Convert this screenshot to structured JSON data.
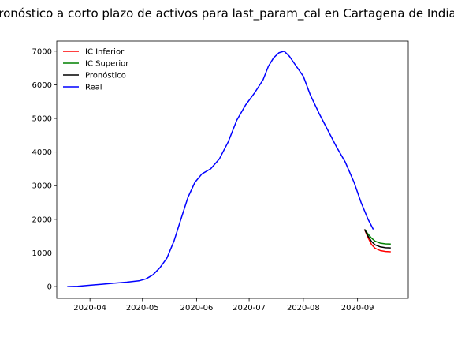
{
  "chart_data": {
    "type": "line",
    "title": "Pronóstico a corto plazo de activos para last_param_cal en Cartagena de Indias",
    "xlabel": "",
    "ylabel": "",
    "x_range": [
      "2020-03-13",
      "2020-09-30"
    ],
    "ylim": [
      -350,
      7300
    ],
    "x_ticks": [
      "2020-04-01",
      "2020-05-01",
      "2020-06-01",
      "2020-07-01",
      "2020-08-01",
      "2020-09-01"
    ],
    "x_tick_labels": [
      "2020-04",
      "2020-05",
      "2020-06",
      "2020-07",
      "2020-08",
      "2020-09"
    ],
    "y_ticks": [
      0,
      1000,
      2000,
      3000,
      4000,
      5000,
      6000,
      7000
    ],
    "y_tick_labels": [
      "0",
      "1000",
      "2000",
      "3000",
      "4000",
      "5000",
      "6000",
      "7000"
    ],
    "grid": false,
    "legend_position": "top-left",
    "series": [
      {
        "name": "IC Inferior",
        "color": "#ff0000",
        "points": [
          [
            "2020-09-05",
            1700
          ],
          [
            "2020-09-07",
            1450
          ],
          [
            "2020-09-09",
            1250
          ],
          [
            "2020-09-11",
            1140
          ],
          [
            "2020-09-14",
            1070
          ],
          [
            "2020-09-17",
            1045
          ],
          [
            "2020-09-20",
            1035
          ]
        ]
      },
      {
        "name": "IC Superior",
        "color": "#008000",
        "points": [
          [
            "2020-09-05",
            1700
          ],
          [
            "2020-09-07",
            1560
          ],
          [
            "2020-09-09",
            1440
          ],
          [
            "2020-09-11",
            1350
          ],
          [
            "2020-09-14",
            1290
          ],
          [
            "2020-09-17",
            1270
          ],
          [
            "2020-09-20",
            1265
          ]
        ]
      },
      {
        "name": "Pronóstico",
        "color": "#000000",
        "points": [
          [
            "2020-09-05",
            1700
          ],
          [
            "2020-09-07",
            1500
          ],
          [
            "2020-09-09",
            1340
          ],
          [
            "2020-09-11",
            1240
          ],
          [
            "2020-09-14",
            1180
          ],
          [
            "2020-09-17",
            1155
          ],
          [
            "2020-09-20",
            1150
          ]
        ]
      },
      {
        "name": "Real",
        "color": "#0000ff",
        "points": [
          [
            "2020-03-19",
            0
          ],
          [
            "2020-03-25",
            10
          ],
          [
            "2020-04-01",
            40
          ],
          [
            "2020-04-08",
            70
          ],
          [
            "2020-04-15",
            100
          ],
          [
            "2020-04-22",
            130
          ],
          [
            "2020-04-29",
            170
          ],
          [
            "2020-05-03",
            230
          ],
          [
            "2020-05-07",
            350
          ],
          [
            "2020-05-11",
            560
          ],
          [
            "2020-05-15",
            850
          ],
          [
            "2020-05-19",
            1350
          ],
          [
            "2020-05-23",
            2000
          ],
          [
            "2020-05-27",
            2650
          ],
          [
            "2020-05-31",
            3100
          ],
          [
            "2020-06-04",
            3350
          ],
          [
            "2020-06-09",
            3500
          ],
          [
            "2020-06-14",
            3800
          ],
          [
            "2020-06-19",
            4300
          ],
          [
            "2020-06-24",
            4950
          ],
          [
            "2020-06-29",
            5400
          ],
          [
            "2020-07-04",
            5750
          ],
          [
            "2020-07-09",
            6150
          ],
          [
            "2020-07-12",
            6550
          ],
          [
            "2020-07-15",
            6800
          ],
          [
            "2020-07-18",
            6950
          ],
          [
            "2020-07-21",
            7000
          ],
          [
            "2020-07-24",
            6850
          ],
          [
            "2020-07-28",
            6550
          ],
          [
            "2020-08-01",
            6250
          ],
          [
            "2020-08-05",
            5700
          ],
          [
            "2020-08-10",
            5150
          ],
          [
            "2020-08-15",
            4650
          ],
          [
            "2020-08-20",
            4150
          ],
          [
            "2020-08-25",
            3700
          ],
          [
            "2020-08-30",
            3100
          ],
          [
            "2020-09-03",
            2500
          ],
          [
            "2020-09-07",
            2000
          ],
          [
            "2020-09-10",
            1700
          ]
        ]
      }
    ]
  }
}
